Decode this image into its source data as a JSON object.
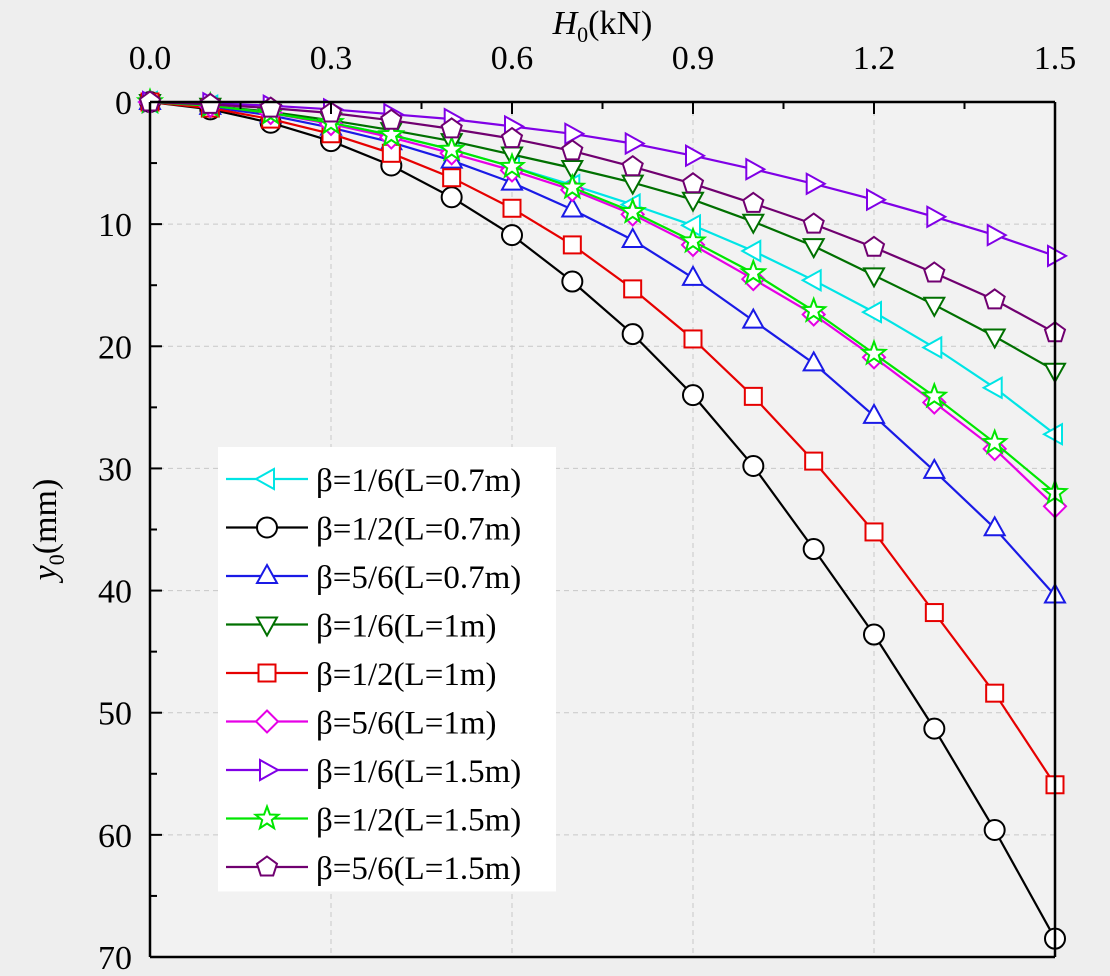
{
  "chart_data": {
    "type": "line",
    "title": "",
    "x_axis": {
      "label_main": "H",
      "label_sub": "0",
      "label_unit": "(kN)",
      "position": "top",
      "range": [
        0.0,
        1.5
      ],
      "ticks": [
        0.0,
        0.3,
        0.6,
        0.9,
        1.2,
        1.5
      ],
      "tick_labels": [
        "0.0",
        "0.3",
        "0.6",
        "0.9",
        "1.2",
        "1.5"
      ]
    },
    "y_axis": {
      "label_main": "y",
      "label_sub": "0",
      "label_unit": "(mm)",
      "inverted": true,
      "range": [
        0,
        70
      ],
      "ticks": [
        0,
        10,
        20,
        30,
        40,
        50,
        60,
        70
      ],
      "tick_labels": [
        "0",
        "10",
        "20",
        "30",
        "40",
        "50",
        "60",
        "70"
      ]
    },
    "grid": true,
    "legend_position": "bottom-left",
    "x": [
      0.0,
      0.1,
      0.2,
      0.3,
      0.4,
      0.5,
      0.6,
      0.7,
      0.8,
      0.9,
      1.0,
      1.1,
      1.2,
      1.3,
      1.4,
      1.5
    ],
    "series": [
      {
        "name": "β=1/6(L=0.7m)",
        "beta": "1/6",
        "L": "0.7m",
        "color": "#00e5e5",
        "marker": "triangle-left",
        "values": [
          0,
          0.3,
          0.9,
          1.7,
          2.7,
          3.9,
          5.3,
          6.8,
          8.4,
          10.1,
          12.2,
          14.6,
          17.2,
          20.1,
          23.4,
          27.2
        ]
      },
      {
        "name": "β=1/2(L=0.7m)",
        "beta": "1/2",
        "L": "0.7m",
        "color": "#000000",
        "marker": "circle",
        "values": [
          0,
          0.6,
          1.7,
          3.2,
          5.2,
          7.8,
          10.9,
          14.7,
          19.0,
          24.0,
          29.8,
          36.6,
          43.6,
          51.3,
          59.6,
          68.5
        ]
      },
      {
        "name": "β=5/6(L=0.7m)",
        "beta": "5/6",
        "L": "0.7m",
        "color": "#1a1ae6",
        "marker": "triangle-up",
        "values": [
          0,
          0.4,
          1.1,
          2.1,
          3.3,
          4.8,
          6.6,
          8.8,
          11.3,
          14.4,
          17.9,
          21.4,
          25.7,
          30.2,
          34.9,
          40.4
        ]
      },
      {
        "name": "β=1/6(L=1m)",
        "beta": "1/6",
        "L": "1m",
        "color": "#007000",
        "marker": "triangle-down",
        "values": [
          0,
          0.3,
          0.8,
          1.5,
          2.3,
          3.2,
          4.3,
          5.4,
          6.6,
          8.0,
          9.8,
          11.8,
          14.2,
          16.6,
          19.2,
          22.0
        ]
      },
      {
        "name": "β=1/2(L=1m)",
        "beta": "1/2",
        "L": "1m",
        "color": "#e60000",
        "marker": "square",
        "values": [
          0,
          0.5,
          1.4,
          2.6,
          4.2,
          6.2,
          8.7,
          11.7,
          15.3,
          19.4,
          24.1,
          29.4,
          35.2,
          41.8,
          48.4,
          55.9
        ]
      },
      {
        "name": "β=5/6(L=1m)",
        "beta": "5/6",
        "L": "1m",
        "color": "#e600e6",
        "marker": "diamond",
        "values": [
          0,
          0.3,
          0.9,
          1.8,
          2.9,
          4.2,
          5.6,
          7.2,
          9.2,
          11.7,
          14.5,
          17.4,
          20.9,
          24.6,
          28.4,
          33.1
        ]
      },
      {
        "name": "β=1/6(L=1.5m)",
        "beta": "1/6",
        "L": "1.5m",
        "color": "#8000e6",
        "marker": "triangle-right",
        "values": [
          0,
          0.1,
          0.3,
          0.6,
          1.0,
          1.4,
          2.0,
          2.6,
          3.4,
          4.4,
          5.5,
          6.7,
          8.0,
          9.4,
          10.9,
          12.6
        ]
      },
      {
        "name": "β=1/2(L=1.5m)",
        "beta": "1/2",
        "L": "1.5m",
        "color": "#00e600",
        "marker": "star",
        "values": [
          0,
          0.3,
          0.9,
          1.7,
          2.7,
          3.9,
          5.3,
          7.0,
          9.0,
          11.4,
          14.0,
          17.1,
          20.6,
          24.1,
          27.9,
          32.0
        ]
      },
      {
        "name": "β=5/6(L=1.5m)",
        "beta": "5/6",
        "L": "1.5m",
        "color": "#700070",
        "marker": "pentagon",
        "values": [
          0,
          0.2,
          0.5,
          0.9,
          1.5,
          2.2,
          3.0,
          4.0,
          5.3,
          6.7,
          8.3,
          10.0,
          11.9,
          14.0,
          16.2,
          18.9
        ]
      }
    ]
  }
}
